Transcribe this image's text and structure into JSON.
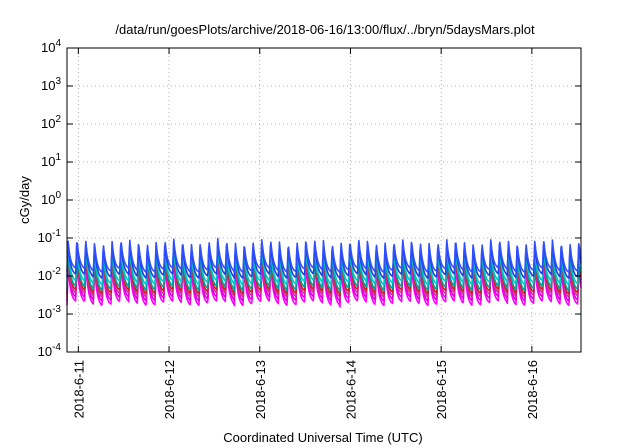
{
  "chart_data": {
    "type": "line",
    "title": "/data/run/goesPlots/archive/2018-06-16/13:00/flux/../bryn/5daysMars.plot",
    "xlabel": "Coordinated Universal Time (UTC)",
    "ylabel": "cGy/day",
    "yscale": "log",
    "ylim": [
      0.0001,
      10000
    ],
    "y_ticks": [
      {
        "value": 0.0001,
        "base": "10",
        "exp": "-4"
      },
      {
        "value": 0.001,
        "base": "10",
        "exp": "-3"
      },
      {
        "value": 0.01,
        "base": "10",
        "exp": "-2"
      },
      {
        "value": 0.1,
        "base": "10",
        "exp": "-1"
      },
      {
        "value": 1,
        "base": "10",
        "exp": "0"
      },
      {
        "value": 10,
        "base": "10",
        "exp": "1"
      },
      {
        "value": 100,
        "base": "10",
        "exp": "2"
      },
      {
        "value": 1000,
        "base": "10",
        "exp": "3"
      },
      {
        "value": 10000,
        "base": "10",
        "exp": "4"
      }
    ],
    "x_range": [
      "2018-06-10T21:00",
      "2018-06-16T13:00"
    ],
    "x_ticks": [
      {
        "label": "2018-6-11",
        "date": "2018-06-11T00:00"
      },
      {
        "label": "2018-6-12",
        "date": "2018-06-12T00:00"
      },
      {
        "label": "2018-6-13",
        "date": "2018-06-13T00:00"
      },
      {
        "label": "2018-6-14",
        "date": "2018-06-14T00:00"
      },
      {
        "label": "2018-6-15",
        "date": "2018-06-15T00:00"
      },
      {
        "label": "2018-6-16",
        "date": "2018-06-16T00:00"
      }
    ],
    "grid": true,
    "oscillation_period_hours": 2.33,
    "series": [
      {
        "color": "#ff00ff",
        "peak": 0.02,
        "trough": 0.0017
      },
      {
        "color": "#e000e0",
        "peak": 0.026,
        "trough": 0.0022
      },
      {
        "color": "#cc3399",
        "peak": 0.032,
        "trough": 0.0028
      },
      {
        "color": "#d02020",
        "peak": 0.04,
        "trough": 0.0034
      },
      {
        "color": "#00a0a0",
        "peak": 0.05,
        "trough": 0.0042
      },
      {
        "color": "#00c8c8",
        "peak": 0.055,
        "trough": 0.006
      },
      {
        "color": "#2040e0",
        "peak": 0.07,
        "trough": 0.009
      },
      {
        "color": "#3050ff",
        "peak": 0.085,
        "trough": 0.013
      }
    ]
  }
}
